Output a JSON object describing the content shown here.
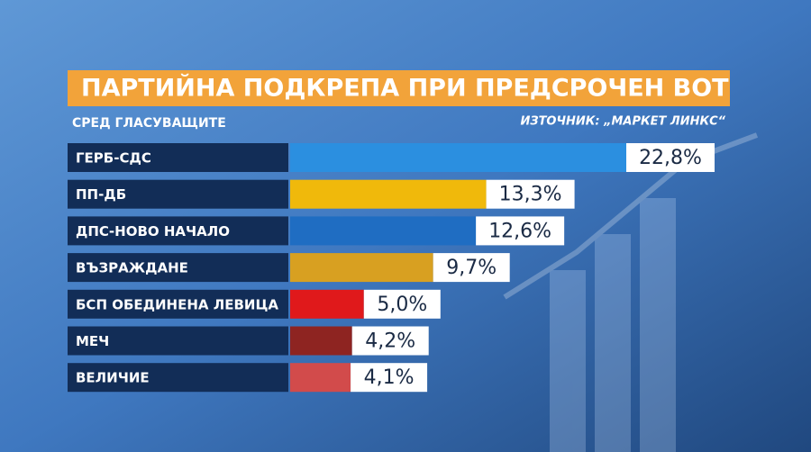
{
  "chart_data": {
    "type": "hbar",
    "title": "ПАРТИЙНА ПОДКРЕПА ПРИ ПРЕДСРОЧЕН ВОТ",
    "subtitle": "СРЕД ГЛАСУВАЩИТЕ",
    "source": "ИЗТОЧНИК: „МАРКЕТ ЛИНКС“",
    "categories": [
      "ГЕРБ-СДС",
      "ПП-ДБ",
      "ДПС-НОВО НАЧАЛО",
      "ВЪЗРАЖДАНЕ",
      "БСП ОБЕДИНЕНА ЛЕВИЦА",
      "МЕЧ",
      "ВЕЛИЧИЕ"
    ],
    "values": [
      22.8,
      13.3,
      12.6,
      9.7,
      5.0,
      4.2,
      4.1
    ],
    "value_labels": [
      "22,8%",
      "13,3%",
      "12,6%",
      "9,7%",
      "5,0%",
      "4,2%",
      "4,1%"
    ],
    "colors": [
      "#2b8fe0",
      "#f0b90b",
      "#1f6dc2",
      "#d8a021",
      "#e0191b",
      "#8e2421",
      "#d24b4b"
    ]
  }
}
